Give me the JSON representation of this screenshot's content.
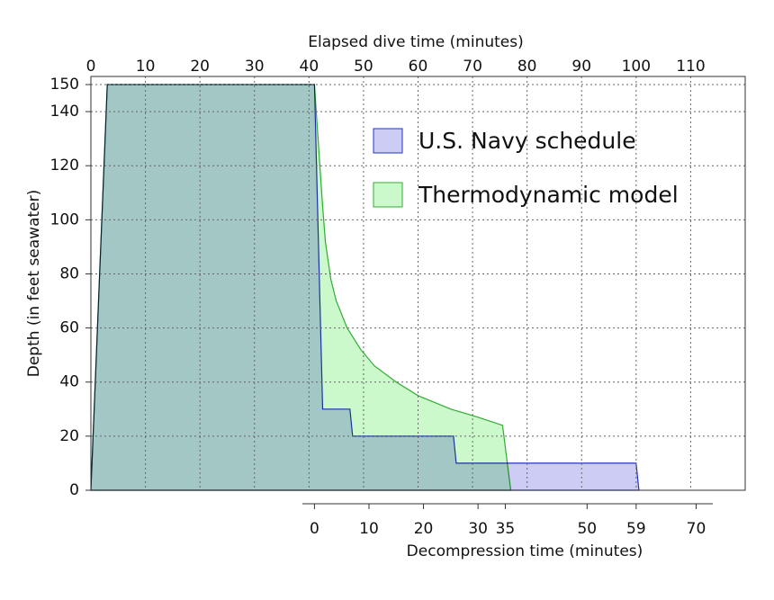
{
  "chart_data": {
    "type": "area",
    "xlabel": "Elapsed dive time (minutes)",
    "ylabel": "Depth (in feet seawater)",
    "x2label": "Decompression time (minutes)",
    "xlim": [
      0,
      120
    ],
    "xticks": [
      0,
      10,
      20,
      30,
      40,
      50,
      60,
      70,
      80,
      90,
      100,
      110
    ],
    "ylim": [
      0,
      153
    ],
    "yticks": [
      0,
      20,
      40,
      60,
      80,
      100,
      120,
      140,
      150
    ],
    "x2lim": [
      -41,
      79
    ],
    "x2ticks": [
      0,
      10,
      20,
      30,
      35,
      50,
      59,
      70
    ],
    "grid": true,
    "legend": "top",
    "series": [
      {
        "name": "U.S. Navy schedule",
        "color": "#2233cc",
        "fill": "#ccccf5",
        "x": [
          0,
          3,
          41,
          42.5,
          47.5,
          48,
          66.5,
          67,
          100,
          100.5
        ],
        "values": [
          0,
          150,
          150,
          30,
          30,
          20,
          20,
          10,
          10,
          0
        ]
      },
      {
        "name": "Thermodynamic model",
        "color": "#33aa33",
        "fill": "#ccf9cc",
        "x": [
          0,
          3,
          41,
          41.5,
          42,
          42.5,
          43,
          44,
          45,
          47,
          49.5,
          52,
          56,
          60,
          66,
          71,
          75.5,
          77
        ],
        "values": [
          0,
          150,
          150,
          135,
          120,
          105,
          92,
          78,
          70,
          60,
          52,
          46,
          40,
          35,
          30,
          27,
          24,
          0
        ]
      }
    ]
  }
}
